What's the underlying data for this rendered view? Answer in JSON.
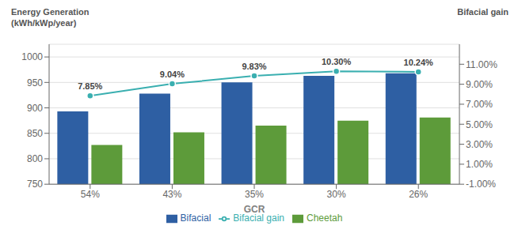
{
  "chart_data": {
    "type": "bar",
    "categories": [
      "54%",
      "43%",
      "35%",
      "30%",
      "26%"
    ],
    "xlabel": "GCR",
    "ylabel": "Energy Generation\n(kWh/kWp/year)",
    "y2label": "Bifacial gain",
    "ylim": [
      750,
      1025
    ],
    "yticks": [
      750,
      800,
      850,
      900,
      950,
      1000
    ],
    "y2lim": [
      -1.0,
      13.0
    ],
    "y2ticks": [
      {
        "value": 11.0,
        "label": "11.00%"
      },
      {
        "value": 9.0,
        "label": "9.00%"
      },
      {
        "value": 7.0,
        "label": "7.00%"
      },
      {
        "value": 5.0,
        "label": "5.00%"
      },
      {
        "value": 3.0,
        "label": "3.00%"
      },
      {
        "value": 1.0,
        "label": "1.00%"
      },
      {
        "value": -1.0,
        "label": "-1.00%"
      }
    ],
    "grid": true,
    "legend": "bottom",
    "series": [
      {
        "name": "Bifacial",
        "type": "bar",
        "color": "#2E5FA3",
        "values": [
          893,
          928,
          950,
          963,
          968
        ]
      },
      {
        "name": "Cheetah",
        "type": "bar",
        "color": "#5D9B3A",
        "values": [
          827,
          852,
          865,
          875,
          881
        ]
      },
      {
        "name": "Bifacial gain",
        "type": "line",
        "axis": "y2",
        "color": "#3AAFB0",
        "marker": "circle",
        "line_style": "solid",
        "data_labels": true,
        "values": [
          7.85,
          9.04,
          9.83,
          10.3,
          10.24
        ],
        "value_labels": [
          "7.85%",
          "9.04%",
          "9.83%",
          "10.30%",
          "10.24%"
        ]
      }
    ]
  }
}
